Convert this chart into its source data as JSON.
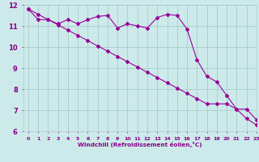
{
  "line1_x": [
    0,
    1,
    2,
    3,
    4,
    5,
    6,
    7,
    8,
    9,
    10,
    11,
    12,
    13,
    14,
    15,
    16,
    17,
    18,
    19,
    20,
    21,
    22,
    23
  ],
  "line1_y": [
    11.8,
    11.3,
    11.3,
    11.1,
    11.3,
    11.1,
    11.3,
    11.45,
    11.5,
    10.9,
    11.1,
    11.0,
    10.9,
    11.4,
    11.55,
    11.5,
    10.85,
    9.4,
    8.6,
    8.35,
    7.7,
    7.05,
    6.6,
    6.3
  ],
  "line2_x": [
    0,
    1,
    2,
    3,
    4,
    5,
    6,
    7,
    8,
    9,
    10,
    11,
    12,
    13,
    14,
    15,
    16,
    17,
    18,
    19,
    20,
    21,
    22,
    23
  ],
  "line2_y": [
    11.8,
    11.55,
    11.3,
    11.05,
    10.8,
    10.55,
    10.3,
    10.05,
    9.8,
    9.55,
    9.3,
    9.05,
    8.8,
    8.55,
    8.3,
    8.05,
    7.8,
    7.55,
    7.3,
    7.3,
    7.3,
    7.05,
    7.05,
    6.55
  ],
  "line_color": "#990099",
  "marker": "D",
  "marker_size": 2.0,
  "bg_color": "#cdeaea",
  "grid_color": "#aacccc",
  "axis_color": "#880088",
  "xlabel": "Windchill (Refroidissement éolien,°C)",
  "ylim": [
    6,
    12
  ],
  "xlim": [
    -0.5,
    23
  ],
  "yticks": [
    6,
    7,
    8,
    9,
    10,
    11,
    12
  ],
  "xticks": [
    0,
    1,
    2,
    3,
    4,
    5,
    6,
    7,
    8,
    9,
    10,
    11,
    12,
    13,
    14,
    15,
    16,
    17,
    18,
    19,
    20,
    21,
    22,
    23
  ]
}
